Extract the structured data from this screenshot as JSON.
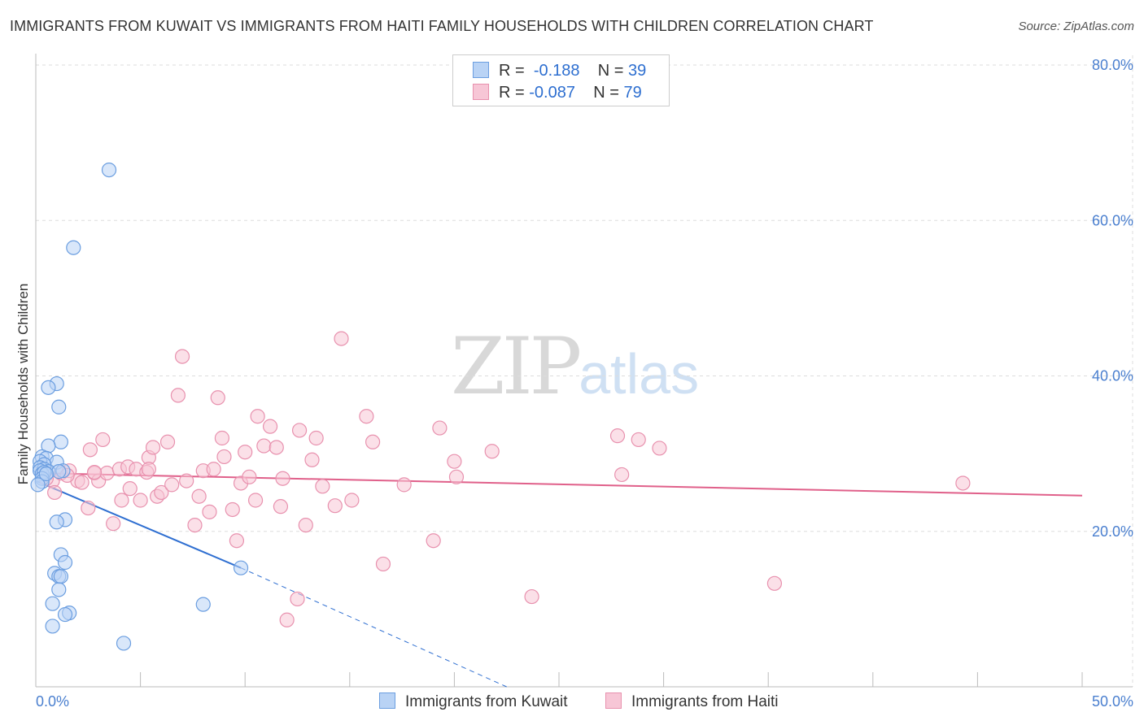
{
  "title": "IMMIGRANTS FROM KUWAIT VS IMMIGRANTS FROM HAITI FAMILY HOUSEHOLDS WITH CHILDREN CORRELATION CHART",
  "source": "Source: ZipAtlas.com",
  "watermark": {
    "zip": "ZIP",
    "atlas": "atlas"
  },
  "legend": {
    "kuwait": {
      "r_label": "R =",
      "r_value": "-0.188",
      "n_label": "N =",
      "n_value": "39"
    },
    "haiti": {
      "r_label": "R =",
      "r_value": "-0.087",
      "n_label": "N =",
      "n_value": "79"
    }
  },
  "bottom_legend": {
    "kuwait": "Immigrants from Kuwait",
    "haiti": "Immigrants from Haiti"
  },
  "colors": {
    "kuwait_fill": "#b9d3f5",
    "kuwait_stroke": "#6b9ee0",
    "kuwait_line": "#2f6fd1",
    "haiti_fill": "#f7c6d6",
    "haiti_stroke": "#e891ae",
    "haiti_line": "#e0608a",
    "tick_label": "#4a7fcf",
    "grid": "#dddddd"
  },
  "chart_data": {
    "type": "scatter",
    "xlabel": "",
    "ylabel": "Family Households with Children",
    "xlim": [
      0,
      50
    ],
    "ylim": [
      0,
      80
    ],
    "x_tick_labels": [
      {
        "v": 0,
        "label": "0.0%"
      },
      {
        "v": 50,
        "label": "50.0%"
      }
    ],
    "y_tick_labels": [
      {
        "v": 20,
        "label": "20.0%"
      },
      {
        "v": 40,
        "label": "40.0%"
      },
      {
        "v": 60,
        "label": "60.0%"
      },
      {
        "v": 80,
        "label": "80.0%"
      }
    ],
    "grid": true,
    "series": [
      {
        "name": "Immigrants from Kuwait",
        "points": [
          [
            3.5,
            66.5
          ],
          [
            1.8,
            56.5
          ],
          [
            1.0,
            39.0
          ],
          [
            0.6,
            38.5
          ],
          [
            1.1,
            36.0
          ],
          [
            1.2,
            31.5
          ],
          [
            0.6,
            31.0
          ],
          [
            0.3,
            29.6
          ],
          [
            0.5,
            29.4
          ],
          [
            0.2,
            29.0
          ],
          [
            1.0,
            28.9
          ],
          [
            0.4,
            28.6
          ],
          [
            0.2,
            28.2
          ],
          [
            0.4,
            28.0
          ],
          [
            0.2,
            27.8
          ],
          [
            0.6,
            27.7
          ],
          [
            1.3,
            27.8
          ],
          [
            0.3,
            27.4
          ],
          [
            0.4,
            27.6
          ],
          [
            0.3,
            26.8
          ],
          [
            0.3,
            26.4
          ],
          [
            0.1,
            26.0
          ],
          [
            1.4,
            21.5
          ],
          [
            1.0,
            21.2
          ],
          [
            1.2,
            17.0
          ],
          [
            1.4,
            16.0
          ],
          [
            0.9,
            14.6
          ],
          [
            1.1,
            14.2
          ],
          [
            1.2,
            14.2
          ],
          [
            1.1,
            12.5
          ],
          [
            0.8,
            10.7
          ],
          [
            1.6,
            9.5
          ],
          [
            1.4,
            9.3
          ],
          [
            0.8,
            7.8
          ],
          [
            9.8,
            15.3
          ],
          [
            8.0,
            10.6
          ],
          [
            4.2,
            5.6
          ],
          [
            1.1,
            27.7
          ],
          [
            0.5,
            27.4
          ]
        ],
        "trend": {
          "x0": 0,
          "y0": 26.5,
          "x1": 9.8,
          "y1": 15.3,
          "dash_x1": 22.5,
          "dash_y1": 0
        }
      },
      {
        "name": "Immigrants from Haiti",
        "points": [
          [
            0.8,
            26.5
          ],
          [
            0.9,
            25.0
          ],
          [
            1.2,
            27.5
          ],
          [
            1.6,
            27.8
          ],
          [
            2.0,
            26.5
          ],
          [
            2.2,
            26.3
          ],
          [
            2.5,
            23.0
          ],
          [
            2.6,
            30.5
          ],
          [
            2.8,
            27.5
          ],
          [
            3.0,
            26.5
          ],
          [
            3.2,
            31.8
          ],
          [
            3.4,
            27.5
          ],
          [
            3.7,
            21.0
          ],
          [
            4.0,
            28.0
          ],
          [
            4.1,
            24.0
          ],
          [
            4.4,
            28.3
          ],
          [
            4.5,
            25.5
          ],
          [
            4.8,
            28.0
          ],
          [
            5.0,
            24.0
          ],
          [
            5.3,
            27.6
          ],
          [
            5.4,
            29.5
          ],
          [
            5.6,
            30.8
          ],
          [
            5.8,
            24.5
          ],
          [
            6.0,
            25.0
          ],
          [
            6.3,
            31.5
          ],
          [
            6.5,
            26.0
          ],
          [
            6.8,
            37.5
          ],
          [
            7.0,
            42.5
          ],
          [
            7.2,
            26.5
          ],
          [
            7.6,
            20.8
          ],
          [
            7.8,
            24.5
          ],
          [
            8.0,
            27.8
          ],
          [
            8.3,
            22.5
          ],
          [
            8.5,
            28.0
          ],
          [
            8.7,
            37.2
          ],
          [
            8.9,
            32.0
          ],
          [
            9.0,
            29.6
          ],
          [
            9.4,
            22.8
          ],
          [
            9.6,
            18.8
          ],
          [
            9.8,
            26.2
          ],
          [
            10.0,
            30.2
          ],
          [
            10.2,
            27.0
          ],
          [
            10.5,
            24.0
          ],
          [
            10.6,
            34.8
          ],
          [
            10.9,
            31.0
          ],
          [
            11.2,
            33.5
          ],
          [
            11.5,
            30.8
          ],
          [
            11.7,
            23.2
          ],
          [
            11.8,
            26.8
          ],
          [
            12.0,
            8.6
          ],
          [
            12.5,
            11.3
          ],
          [
            12.6,
            33.0
          ],
          [
            12.9,
            20.8
          ],
          [
            13.2,
            29.2
          ],
          [
            13.4,
            32.0
          ],
          [
            13.7,
            25.8
          ],
          [
            14.3,
            23.3
          ],
          [
            14.6,
            44.8
          ],
          [
            15.1,
            24.0
          ],
          [
            15.8,
            34.8
          ],
          [
            16.1,
            31.5
          ],
          [
            16.6,
            15.8
          ],
          [
            17.6,
            26.0
          ],
          [
            19.0,
            18.8
          ],
          [
            19.3,
            33.3
          ],
          [
            20.0,
            29.0
          ],
          [
            20.1,
            27.0
          ],
          [
            21.8,
            30.3
          ],
          [
            23.7,
            11.6
          ],
          [
            27.8,
            32.3
          ],
          [
            28.0,
            27.3
          ],
          [
            28.8,
            31.8
          ],
          [
            29.8,
            30.7
          ],
          [
            35.3,
            13.3
          ],
          [
            44.3,
            26.2
          ],
          [
            0.5,
            26.8
          ],
          [
            2.8,
            27.6
          ],
          [
            5.4,
            28.0
          ],
          [
            1.5,
            27.2
          ]
        ],
        "trend": {
          "x0": 0,
          "y0": 27.5,
          "x1": 50,
          "y1": 24.6
        }
      }
    ]
  }
}
